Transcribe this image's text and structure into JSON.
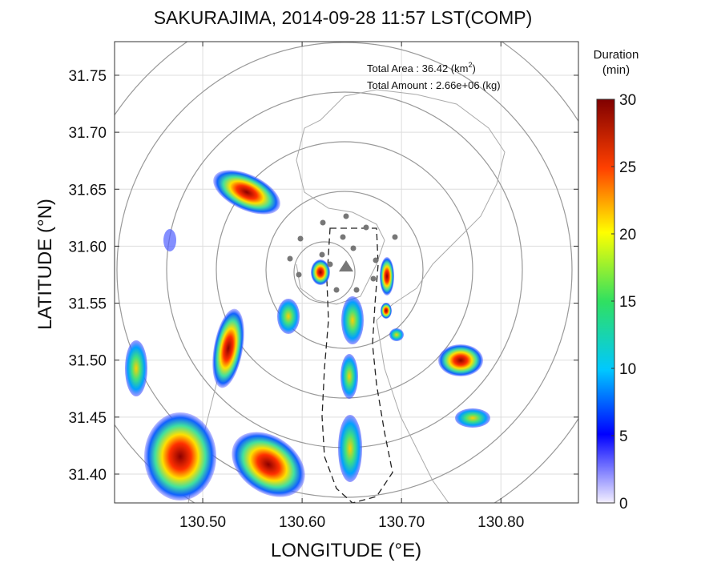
{
  "title": "SAKURAJIMA, 2014-09-28 11:57 LST(COMP)",
  "x_axis": {
    "label": "LONGITUDE (°E)",
    "lim": [
      130.4113,
      130.878
    ],
    "ticks": [
      {
        "value": 130.5,
        "label": "130.50"
      },
      {
        "value": 130.6,
        "label": "130.60"
      },
      {
        "value": 130.7,
        "label": "130.70"
      },
      {
        "value": 130.8,
        "label": "130.80"
      }
    ]
  },
  "y_axis": {
    "label": "LATITUDE (°N)",
    "lim": [
      31.3747,
      31.7795
    ],
    "ticks": [
      {
        "value": 31.4,
        "label": "31.40"
      },
      {
        "value": 31.45,
        "label": "31.45"
      },
      {
        "value": 31.5,
        "label": "31.50"
      },
      {
        "value": 31.55,
        "label": "31.55"
      },
      {
        "value": 31.6,
        "label": "31.60"
      },
      {
        "value": 31.65,
        "label": "31.65"
      },
      {
        "value": 31.7,
        "label": "31.70"
      },
      {
        "value": 31.75,
        "label": "31.75"
      }
    ]
  },
  "total_area": {
    "text": "Total Area   : 36.42 (km",
    "sup": "2",
    "close": ")"
  },
  "total_amount": "Total Amount : 2.66e+06 (kg)",
  "colorbar": {
    "title": "Duration",
    "unit": "(min)",
    "lim": [
      0,
      30
    ],
    "ticks": [
      0,
      5,
      10,
      15,
      20,
      25,
      30
    ]
  }
}
